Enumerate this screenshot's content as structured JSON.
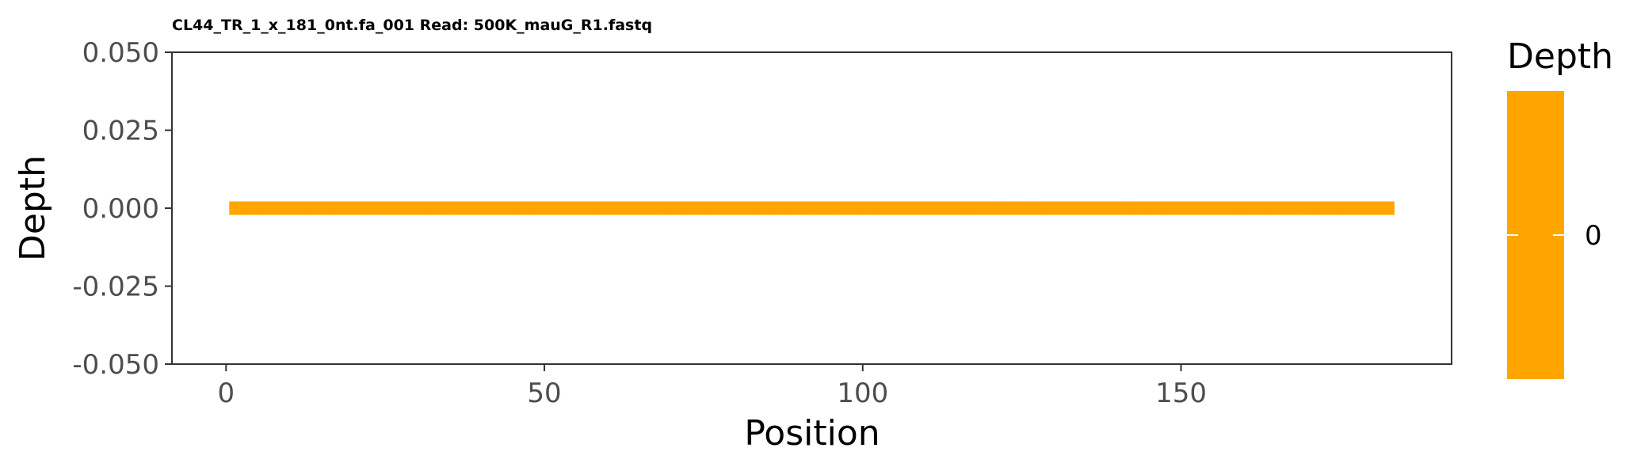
{
  "chart_data": {
    "type": "heatmap",
    "title": "CL44_TR_1_x_181_0nt.fa_001 Read: 500K_mauG_R1.fastq",
    "xlabel": "Position",
    "ylabel": "Depth",
    "xlim": [
      -8.5,
      192.5
    ],
    "ylim": [
      -0.05,
      0.05
    ],
    "x_ticks": [
      0,
      50,
      100,
      150
    ],
    "y_ticks": [
      0.05,
      0.025,
      0.0,
      -0.025,
      -0.05
    ],
    "y_tick_labels": [
      "0.050",
      "0.025",
      "0.000",
      "-0.025",
      "-0.050"
    ],
    "positions": {
      "start": 1,
      "end": 183
    },
    "depth_value": 0,
    "tile_color": "#FFA500",
    "grid": false,
    "legend": {
      "title": "Depth",
      "labels": [
        "0"
      ],
      "color": "#FFA500",
      "placement": "right"
    }
  }
}
